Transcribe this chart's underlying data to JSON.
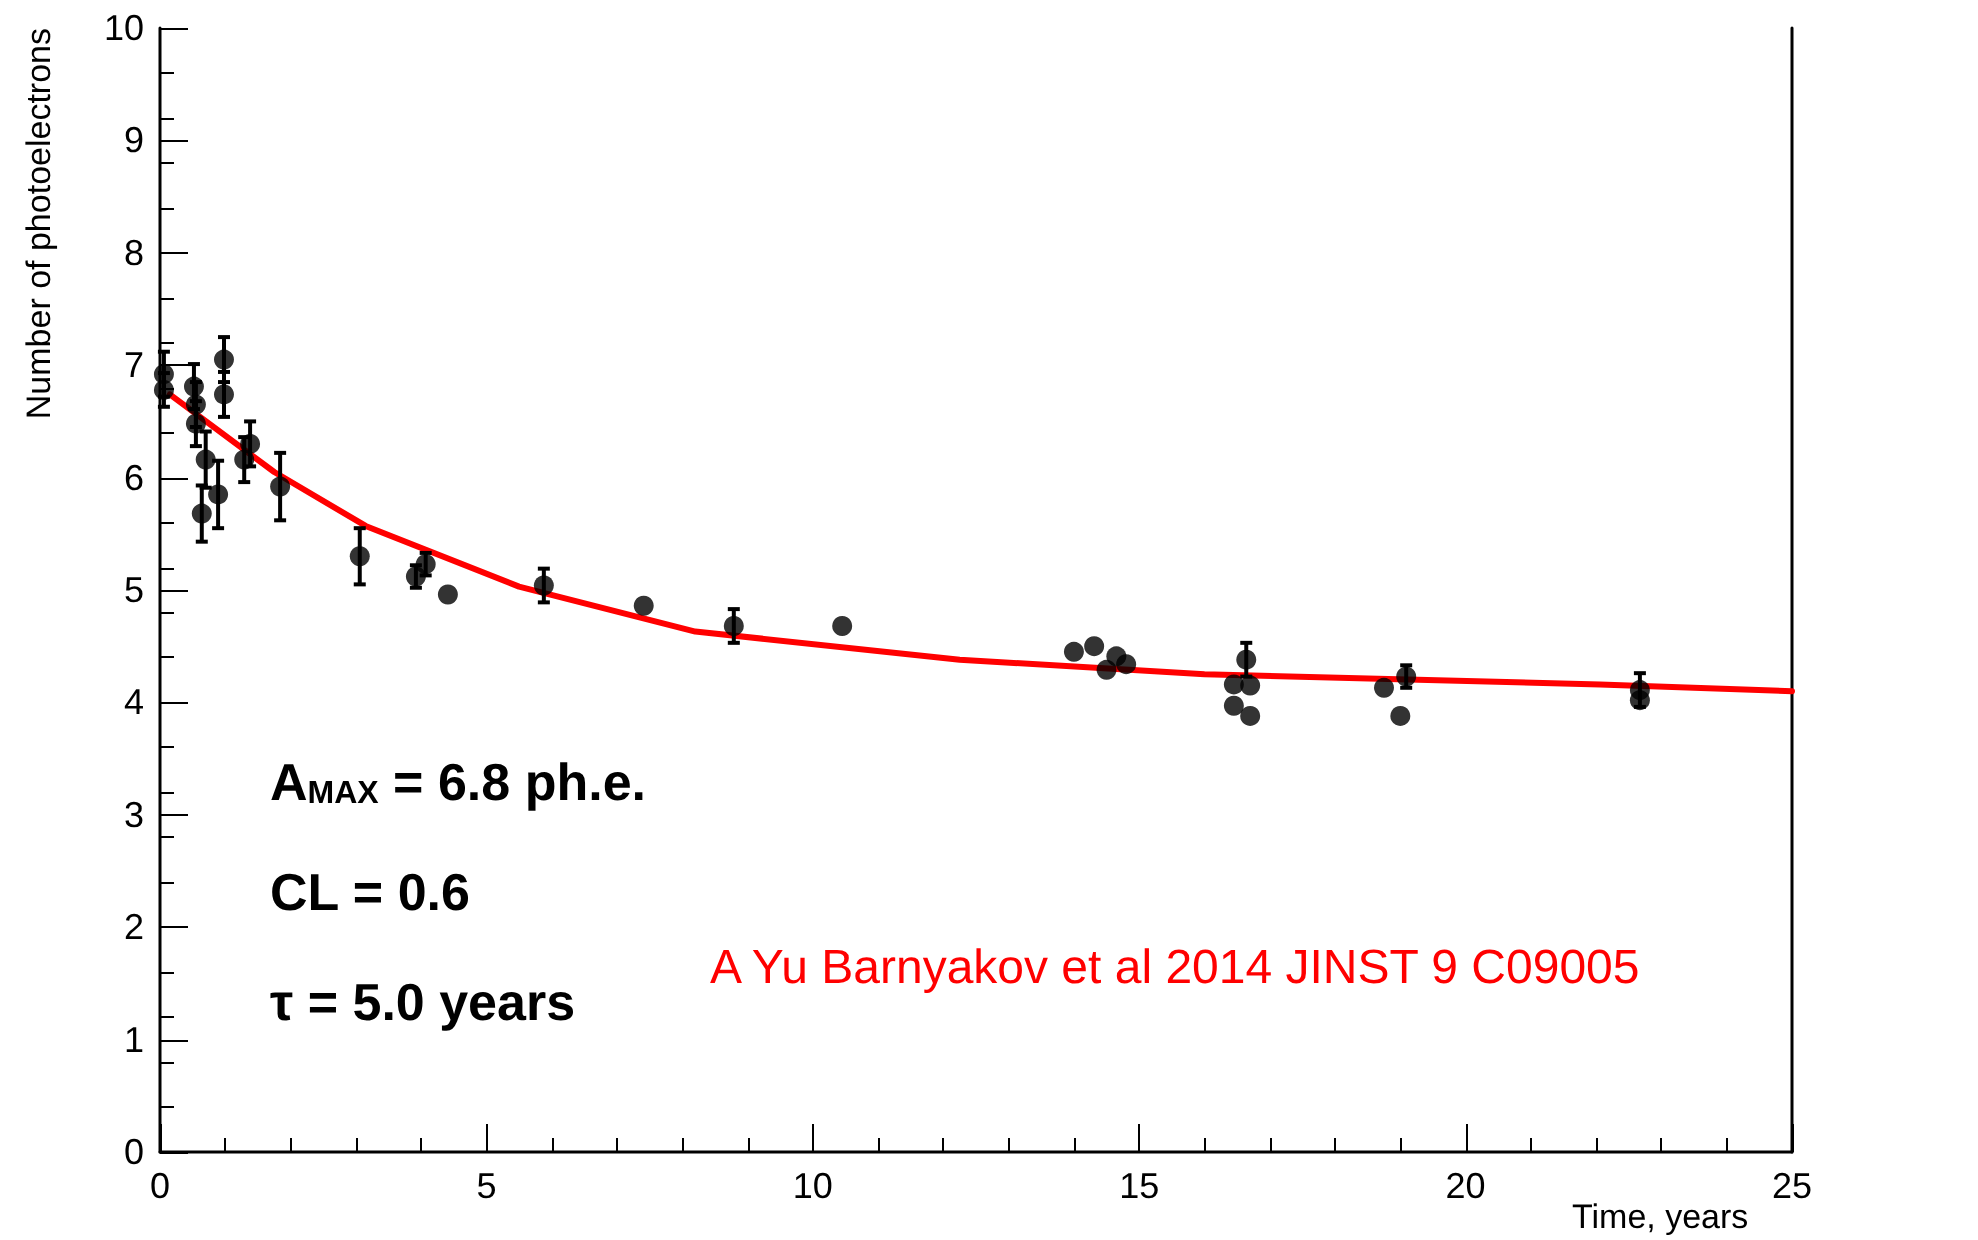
{
  "chart_data": {
    "type": "scatter",
    "xlabel": "Time, years",
    "ylabel": "Number of photoelectrons",
    "xlim": [
      0,
      25
    ],
    "xticks": [
      0,
      5,
      10,
      15,
      20,
      25
    ],
    "ylim": [
      0,
      10
    ],
    "yticks": [
      0,
      1,
      2,
      3,
      4,
      5,
      6,
      7,
      8,
      9,
      10
    ],
    "grid": false,
    "marker": "circle",
    "annotations": [
      "A$_{MAX}$ = 6.8 ph.e.",
      "CL = 0.6",
      "τ = 5.0 years",
      "A Yu Barnyakov et al 2014 JINST 9 C09005"
    ],
    "series": [
      {
        "color": "#000000",
        "x": [
          0.06,
          0.06,
          0.52,
          0.55,
          0.55,
          0.7,
          0.64,
          0.89,
          0.98,
          0.98,
          1.29,
          1.38,
          1.84,
          3.06,
          3.92,
          4.07,
          4.41,
          5.88,
          7.41,
          8.79,
          10.45,
          14.0,
          14.31,
          14.5,
          14.65,
          14.8,
          16.45,
          16.45,
          16.64,
          16.7,
          16.7,
          18.75,
          19.0,
          19.09,
          22.67,
          22.67
        ],
        "values": [
          6.92,
          6.78,
          6.81,
          6.65,
          6.48,
          6.16,
          5.68,
          5.85,
          7.05,
          6.74,
          6.16,
          6.3,
          5.92,
          5.3,
          5.12,
          5.23,
          4.96,
          5.04,
          4.86,
          4.68,
          4.68,
          4.45,
          4.5,
          4.29,
          4.41,
          4.34,
          4.16,
          3.97,
          4.38,
          4.15,
          3.88,
          4.13,
          3.88,
          4.23,
          4.11,
          4.02
        ],
        "errors": [
          0.2,
          0.15,
          0.2,
          0.2,
          0.2,
          0.25,
          0.25,
          0.3,
          0.2,
          0.2,
          0.2,
          0.2,
          0.3,
          0.25,
          0.1,
          0.1,
          null,
          0.15,
          null,
          0.15,
          null,
          null,
          null,
          null,
          null,
          null,
          null,
          null,
          0.15,
          null,
          null,
          null,
          null,
          0.1,
          0.15,
          null
        ]
      },
      {
        "type": "line",
        "color": "#ff0000",
        "marker": "none",
        "x": [
          0.15,
          1.75,
          3.15,
          5.5,
          8.2,
          12.25,
          16.0,
          22.06,
          25.0
        ],
        "values": [
          6.74,
          6.05,
          5.57,
          5.03,
          4.63,
          4.38,
          4.25,
          4.16,
          4.1
        ]
      }
    ]
  }
}
